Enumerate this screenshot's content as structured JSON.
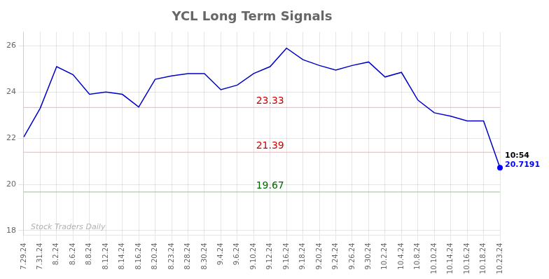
{
  "chart_data": {
    "type": "line",
    "title": "YCL Long Term Signals",
    "categories": [
      "7.29.24",
      "7.31.24",
      "8.2.24",
      "8.6.24",
      "8.8.24",
      "8.12.24",
      "8.14.24",
      "8.16.24",
      "8.20.24",
      "8.23.24",
      "8.28.24",
      "8.30.24",
      "9.4.24",
      "9.6.24",
      "9.10.24",
      "9.12.24",
      "9.16.24",
      "9.18.24",
      "9.20.24",
      "9.24.24",
      "9.26.24",
      "9.30.24",
      "10.2.24",
      "10.4.24",
      "10.8.24",
      "10.10.24",
      "10.14.24",
      "10.16.24",
      "10.18.24",
      "10.23.24"
    ],
    "values": [
      22.05,
      23.3,
      25.1,
      24.75,
      23.9,
      24.0,
      23.9,
      23.35,
      24.55,
      24.7,
      24.8,
      24.8,
      24.1,
      24.3,
      24.8,
      25.1,
      25.9,
      25.4,
      25.15,
      24.95,
      25.15,
      25.3,
      24.65,
      24.85,
      23.65,
      23.1,
      22.95,
      22.75,
      22.75,
      20.7191
    ],
    "color": "#0000cc",
    "ylim": [
      17.8,
      26.6
    ],
    "yticks": [
      18,
      20,
      22,
      24,
      26
    ],
    "grid": true,
    "annotations": [
      {
        "type": "hline",
        "value": 23.33,
        "label": "23.33",
        "color": "#ffaaaa",
        "text_color": "#cc0000"
      },
      {
        "type": "hline",
        "value": 21.39,
        "label": "21.39",
        "color": "#ffaaaa",
        "text_color": "#cc0000"
      },
      {
        "type": "hline",
        "value": 19.67,
        "label": "19.67",
        "color": "#88cc88",
        "text_color": "#006600"
      },
      {
        "type": "point",
        "category": "10.23.24",
        "value": 20.7191,
        "label": "20.7191",
        "color": "#0000ff",
        "time_label": "10:54",
        "time_color": "#000000"
      },
      {
        "type": "text",
        "text": "Stock Traders Daily",
        "color": "#b0b0b0"
      }
    ]
  }
}
